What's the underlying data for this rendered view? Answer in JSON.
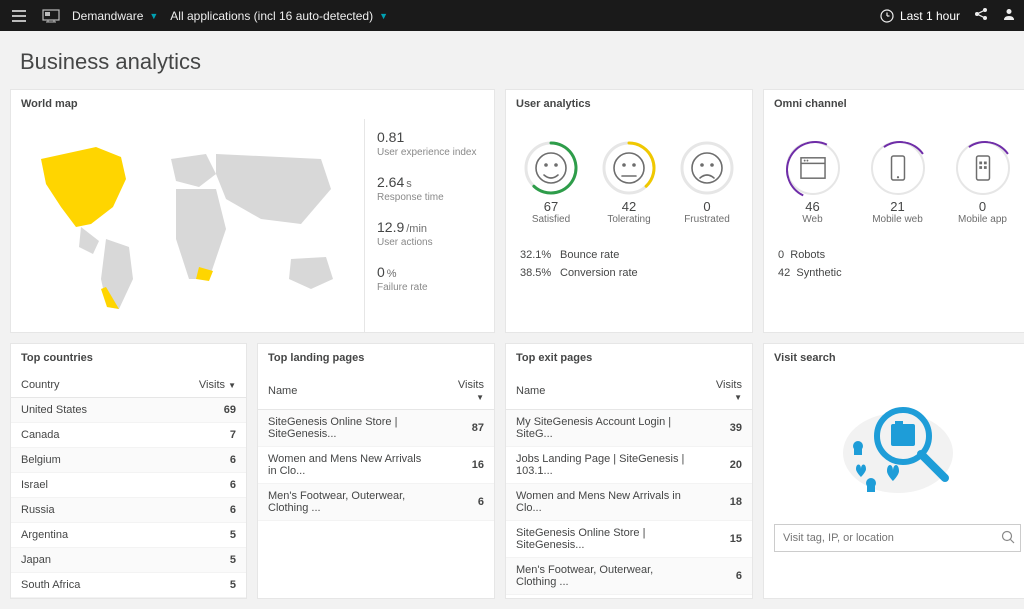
{
  "topbar": {
    "crumb1": "Demandware",
    "crumb2": "All applications (incl 16 auto-detected)",
    "timeframe": "Last 1 hour"
  },
  "page": {
    "title": "Business analytics"
  },
  "worldmap": {
    "title": "World map",
    "stats": [
      {
        "val": "0.81",
        "unit": "",
        "lbl": "User experience index"
      },
      {
        "val": "2.64",
        "unit": "s",
        "lbl": "Response time"
      },
      {
        "val": "12.9",
        "unit": "/min",
        "lbl": "User actions"
      },
      {
        "val": "0",
        "unit": "%",
        "lbl": "Failure rate"
      }
    ],
    "highlight_color": "#ffd500",
    "land_color": "#d8d8d8"
  },
  "user_analytics": {
    "title": "User analytics",
    "faces": [
      {
        "num": "67",
        "lbl": "Satisfied",
        "color": "#2e9d4a",
        "arc_pct": 62,
        "mood": "happy"
      },
      {
        "num": "42",
        "lbl": "Tolerating",
        "color": "#f0c800",
        "arc_pct": 38,
        "mood": "neutral"
      },
      {
        "num": "0",
        "lbl": "Frustrated",
        "color": "#c41425",
        "arc_pct": 0,
        "mood": "sad"
      }
    ],
    "bounce_pct": "32.1%",
    "bounce_lbl": "Bounce rate",
    "conv_pct": "38.5%",
    "conv_lbl": "Conversion rate"
  },
  "omni": {
    "title": "Omni channel",
    "channels": [
      {
        "num": "46",
        "lbl": "Web",
        "icon": "browser"
      },
      {
        "num": "21",
        "lbl": "Mobile web",
        "icon": "phone"
      },
      {
        "num": "0",
        "lbl": "Mobile app",
        "icon": "app"
      }
    ],
    "robots_num": "0",
    "robots_lbl": "Robots",
    "synth_num": "42",
    "synth_lbl": "Synthetic",
    "ring_color": "#6f2da8"
  },
  "top_countries": {
    "title": "Top countries",
    "col1": "Country",
    "col2": "Visits",
    "rows": [
      {
        "name": "United States",
        "v": "69"
      },
      {
        "name": "Canada",
        "v": "7"
      },
      {
        "name": "Belgium",
        "v": "6"
      },
      {
        "name": "Israel",
        "v": "6"
      },
      {
        "name": "Russia",
        "v": "6"
      },
      {
        "name": "Argentina",
        "v": "5"
      },
      {
        "name": "Japan",
        "v": "5"
      },
      {
        "name": "South Africa",
        "v": "5"
      }
    ]
  },
  "top_landing": {
    "title": "Top landing pages",
    "col1": "Name",
    "col2": "Visits",
    "rows": [
      {
        "name": "SiteGenesis Online Store | SiteGenesis...",
        "v": "87"
      },
      {
        "name": "Women and Mens New Arrivals in Clo...",
        "v": "16"
      },
      {
        "name": "Men's Footwear, Outerwear, Clothing ...",
        "v": "6"
      }
    ]
  },
  "top_exit": {
    "title": "Top exit pages",
    "col1": "Name",
    "col2": "Visits",
    "rows": [
      {
        "name": "My SiteGenesis Account Login | SiteG...",
        "v": "39"
      },
      {
        "name": "Jobs Landing Page | SiteGenesis | 103.1...",
        "v": "20"
      },
      {
        "name": "Women and Mens New Arrivals in Clo...",
        "v": "18"
      },
      {
        "name": "SiteGenesis Online Store | SiteGenesis...",
        "v": "15"
      },
      {
        "name": "Men's Footwear, Outerwear, Clothing ...",
        "v": "6"
      }
    ]
  },
  "visit_search": {
    "title": "Visit search",
    "placeholder": "Visit tag, IP, or location"
  }
}
